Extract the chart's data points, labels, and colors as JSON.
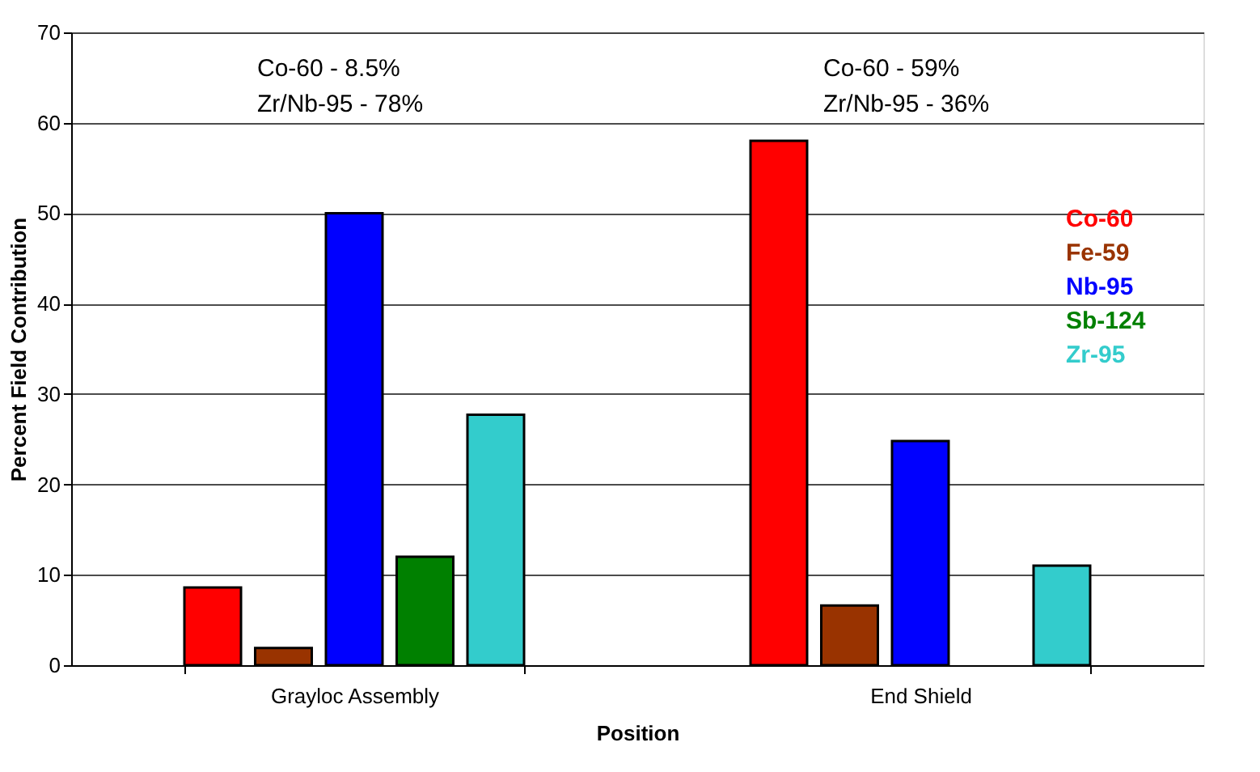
{
  "chart_data": {
    "type": "bar",
    "xlabel": "Position",
    "ylabel": "Percent Field Contribution",
    "categories": [
      "Grayloc Assembly",
      "End Shield"
    ],
    "series": [
      {
        "name": "Co-60",
        "color": "#ff0000",
        "values": [
          8.6,
          58.0
        ]
      },
      {
        "name": "Fe-59",
        "color": "#993300",
        "values": [
          1.9,
          6.6
        ]
      },
      {
        "name": "Nb-95",
        "color": "#0000ff",
        "values": [
          50,
          24.8
        ]
      },
      {
        "name": "Sb-124",
        "color": "#008000",
        "values": [
          12.0,
          null
        ]
      },
      {
        "name": "Zr-95",
        "color": "#33cccc",
        "values": [
          27.7,
          11.0
        ]
      }
    ],
    "ylim": [
      0,
      70
    ],
    "yticks": [
      0,
      10,
      20,
      30,
      40,
      50,
      60,
      70
    ],
    "grid": "y",
    "legend": "right",
    "annotations": [
      "Co-60 - 8.5%",
      "Zr/Nb-95 - 78%",
      "Co-60 - 59%",
      "Zr/Nb-95 - 36%"
    ]
  }
}
